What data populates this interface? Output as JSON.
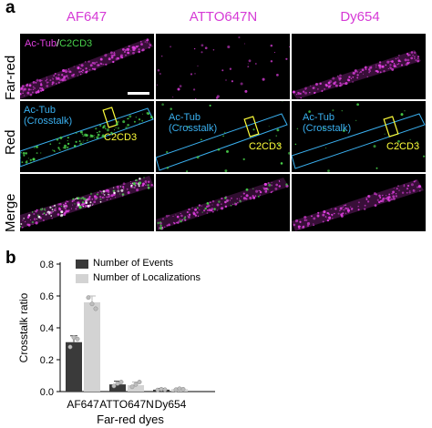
{
  "panel_a": {
    "letter": "a",
    "columns": [
      "AF647",
      "ATTO647N",
      "Dy654"
    ],
    "rows": [
      "Far-red",
      "Red",
      "Merge"
    ],
    "annotations": {
      "actub": "Ac-Tub",
      "slash": "/",
      "c2cd3": "C2CD3",
      "crosstalk": "(Crosstalk)"
    },
    "colors": {
      "magenta": "#e040e0",
      "green": "#49d24b",
      "blue": "#3ab0f0",
      "yellow": "#ffff3a"
    }
  },
  "panel_b": {
    "letter": "b",
    "legend": [
      "Number of Events",
      "Number of Localizations"
    ]
  },
  "chart_data": {
    "type": "bar",
    "categories": [
      "AF647",
      "ATTO647N",
      "Dy654"
    ],
    "series": [
      {
        "name": "Number of Events",
        "values": [
          0.31,
          0.045,
          0.012
        ],
        "errors": [
          0.04,
          0.02,
          0.008
        ],
        "color": "#3a3a3a",
        "points": [
          [
            0.28,
            0.34,
            0.33
          ],
          [
            0.035,
            0.05,
            0.06
          ],
          [
            0.01,
            0.015,
            0.012
          ]
        ]
      },
      {
        "name": "Number of Localizations",
        "values": [
          0.56,
          0.04,
          0.015
        ],
        "errors": [
          0.04,
          0.02,
          0.008
        ],
        "color": "#d3d3d3",
        "points": [
          [
            0.59,
            0.55,
            0.52
          ],
          [
            0.03,
            0.045,
            0.06
          ],
          [
            0.012,
            0.018,
            0.015
          ]
        ]
      }
    ],
    "xlabel": "Far-red dyes",
    "ylabel": "Crosstalk ratio",
    "ylim": [
      0,
      0.8
    ],
    "yticks": [
      0.0,
      0.2,
      0.4,
      0.6,
      0.8
    ],
    "ytick_labels": [
      "0.0",
      "0.2",
      "0.4",
      "0.6",
      "0.8"
    ],
    "grid": false,
    "legend_position": "top"
  }
}
